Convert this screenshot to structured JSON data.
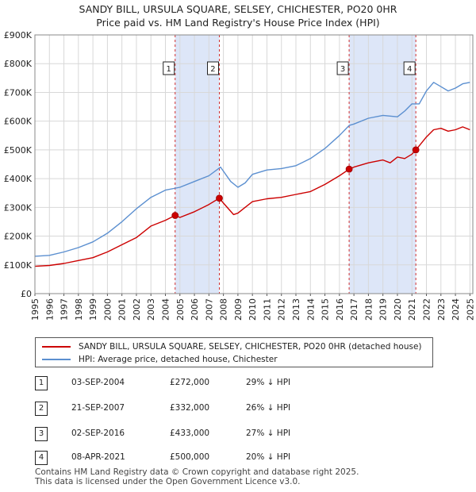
{
  "chart_data": {
    "type": "line",
    "title": "SANDY BILL, URSULA SQUARE, SELSEY, CHICHESTER, PO20 0HR",
    "subtitle": "Price paid vs. HM Land Registry's House Price Index (HPI)",
    "xlim": [
      1995,
      2025.2
    ],
    "ylim": [
      0,
      900000
    ],
    "x_ticks": [
      "1995",
      "1996",
      "1997",
      "1998",
      "1999",
      "2000",
      "2001",
      "2002",
      "2003",
      "2004",
      "2005",
      "2006",
      "2007",
      "2008",
      "2009",
      "2010",
      "2011",
      "2012",
      "2013",
      "2014",
      "2015",
      "2016",
      "2017",
      "2018",
      "2019",
      "2020",
      "2021",
      "2022",
      "2023",
      "2024",
      "2025"
    ],
    "y_ticks": [
      {
        "value": 0,
        "label": "£0"
      },
      {
        "value": 100000,
        "label": "£100K"
      },
      {
        "value": 200000,
        "label": "£200K"
      },
      {
        "value": 300000,
        "label": "£300K"
      },
      {
        "value": 400000,
        "label": "£400K"
      },
      {
        "value": 500000,
        "label": "£500K"
      },
      {
        "value": 600000,
        "label": "£600K"
      },
      {
        "value": 700000,
        "label": "£700K"
      },
      {
        "value": 800000,
        "label": "£800K"
      },
      {
        "value": 900000,
        "label": "£900K"
      }
    ],
    "grid": true,
    "colors": {
      "property": "#cc0000",
      "hpi": "#5b8fd0",
      "shade": "#dde6f8",
      "vline": "#d03030"
    },
    "shaded_periods": [
      [
        2004.67,
        2007.72
      ],
      [
        2016.67,
        2021.27
      ]
    ],
    "series": [
      {
        "name": "SANDY BILL, URSULA SQUARE, SELSEY, CHICHESTER, PO20 0HR (detached house)",
        "color": "#cc0000",
        "x": [
          1995,
          1996,
          1997,
          1998,
          1999,
          2000,
          2001,
          2002,
          2003,
          2004,
          2004.67,
          2005,
          2006,
          2007,
          2007.72,
          2008,
          2008.7,
          2009,
          2009.5,
          2010,
          2011,
          2012,
          2013,
          2014,
          2015,
          2016,
          2016.67,
          2017,
          2018,
          2019,
          2019.5,
          2020,
          2020.5,
          2021,
          2021.27,
          2021.6,
          2022,
          2022.5,
          2023,
          2023.5,
          2024,
          2024.5,
          2025
        ],
        "y": [
          95000,
          98000,
          105000,
          115000,
          125000,
          145000,
          170000,
          195000,
          235000,
          255000,
          272000,
          265000,
          285000,
          310000,
          332000,
          315000,
          275000,
          280000,
          300000,
          320000,
          330000,
          335000,
          345000,
          355000,
          380000,
          410000,
          433000,
          440000,
          455000,
          465000,
          455000,
          475000,
          470000,
          485000,
          500000,
          520000,
          545000,
          570000,
          575000,
          565000,
          570000,
          580000,
          570000
        ]
      },
      {
        "name": "HPI: Average price, detached house, Chichester",
        "color": "#5b8fd0",
        "x": [
          1995,
          1996,
          1997,
          1998,
          1999,
          2000,
          2001,
          2002,
          2003,
          2004,
          2005,
          2006,
          2007,
          2007.8,
          2008.5,
          2009,
          2009.5,
          2010,
          2011,
          2012,
          2013,
          2014,
          2015,
          2016,
          2016.67,
          2017,
          2018,
          2019,
          2020,
          2020.5,
          2021,
          2021.5,
          2022,
          2022.5,
          2023,
          2023.5,
          2024,
          2024.5,
          2025
        ],
        "y": [
          130000,
          133000,
          145000,
          160000,
          180000,
          210000,
          250000,
          295000,
          335000,
          360000,
          370000,
          390000,
          410000,
          440000,
          390000,
          370000,
          385000,
          415000,
          430000,
          435000,
          445000,
          470000,
          505000,
          550000,
          585000,
          590000,
          610000,
          620000,
          615000,
          635000,
          660000,
          660000,
          705000,
          735000,
          720000,
          705000,
          715000,
          730000,
          735000
        ]
      }
    ],
    "sales": [
      {
        "num": "1",
        "x": 2004.67,
        "value": 272000,
        "date": "03-SEP-2004",
        "price": "£272,000",
        "hpi": "29% ↓ HPI"
      },
      {
        "num": "2",
        "x": 2007.72,
        "value": 332000,
        "date": "21-SEP-2007",
        "price": "£332,000",
        "hpi": "26% ↓ HPI"
      },
      {
        "num": "3",
        "x": 2016.67,
        "value": 433000,
        "date": "02-SEP-2016",
        "price": "£433,000",
        "hpi": "27% ↓ HPI"
      },
      {
        "num": "4",
        "x": 2021.27,
        "value": 500000,
        "date": "08-APR-2021",
        "price": "£500,000",
        "hpi": "20% ↓ HPI"
      }
    ]
  },
  "legend": {
    "property": "SANDY BILL, URSULA SQUARE, SELSEY, CHICHESTER, PO20 0HR (detached house)",
    "hpi": "HPI: Average price, detached house, Chichester"
  },
  "footer": {
    "line1": "Contains HM Land Registry data © Crown copyright and database right 2025.",
    "line2": "This data is licensed under the Open Government Licence v3.0."
  }
}
